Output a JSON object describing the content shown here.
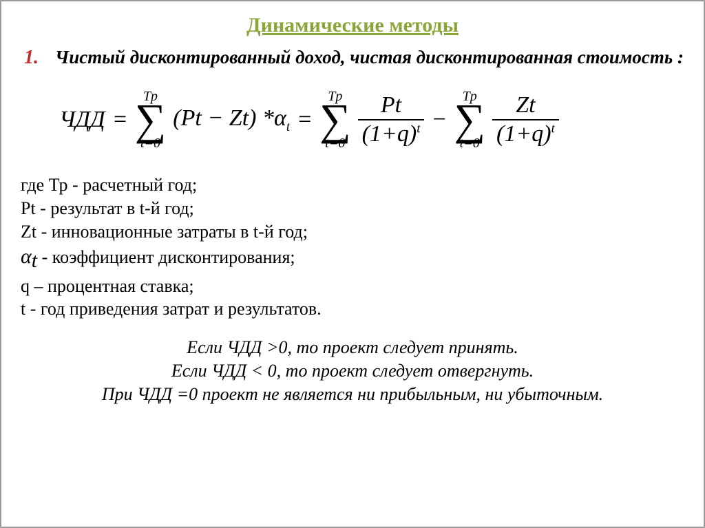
{
  "colors": {
    "title": "#8aa63a",
    "pointNumber": "#c02a2a",
    "border": "#9a9a9a",
    "text": "#000000",
    "background": "#ffffff"
  },
  "typography": {
    "fontFamily": "Times New Roman",
    "titleSize": 30,
    "bodySize": 27,
    "formulaSize": 34,
    "defsSize": 26,
    "rulesSize": 26
  },
  "title": "Динамические методы",
  "point": {
    "number": "1.",
    "text": "Чистый дисконтированный доход, чистая дисконтированная стоимость :"
  },
  "formula": {
    "lhs": "ЧДД",
    "eq": "=",
    "sum_upper": "Tp",
    "sum_lower": "t=0",
    "sigma": "∑",
    "term1_open": "(",
    "term1_a": "Pt",
    "term1_minus": "−",
    "term1_b": "Zt",
    "term1_close": ")",
    "star": "*",
    "alpha": "α",
    "alpha_sub": "t",
    "frac1_num": "Pt",
    "frac_den_base": "(1+q)",
    "frac_den_exp": "t",
    "minus": "−",
    "frac2_num": "Zt"
  },
  "defs": {
    "line1": "где Тр - расчетный год;",
    "line2": "Pt - результат в t-й  год;",
    "line3": "Zt - инновационные затраты в t-й год;",
    "alpha": "α",
    "alpha_sub": "t",
    "line4_rest": " - коэффициент дисконтирования;",
    "line5": "q – процентная ставка;",
    "line6": "t - год приведения затрат и результатов."
  },
  "rules": {
    "r1": "Если ЧДД >0, то проект следует принять.",
    "r2": "Если ЧДД < 0, то проект следует отвергнуть.",
    "r3": "При ЧДД =0 проект не является ни прибыльным, ни убыточным."
  }
}
